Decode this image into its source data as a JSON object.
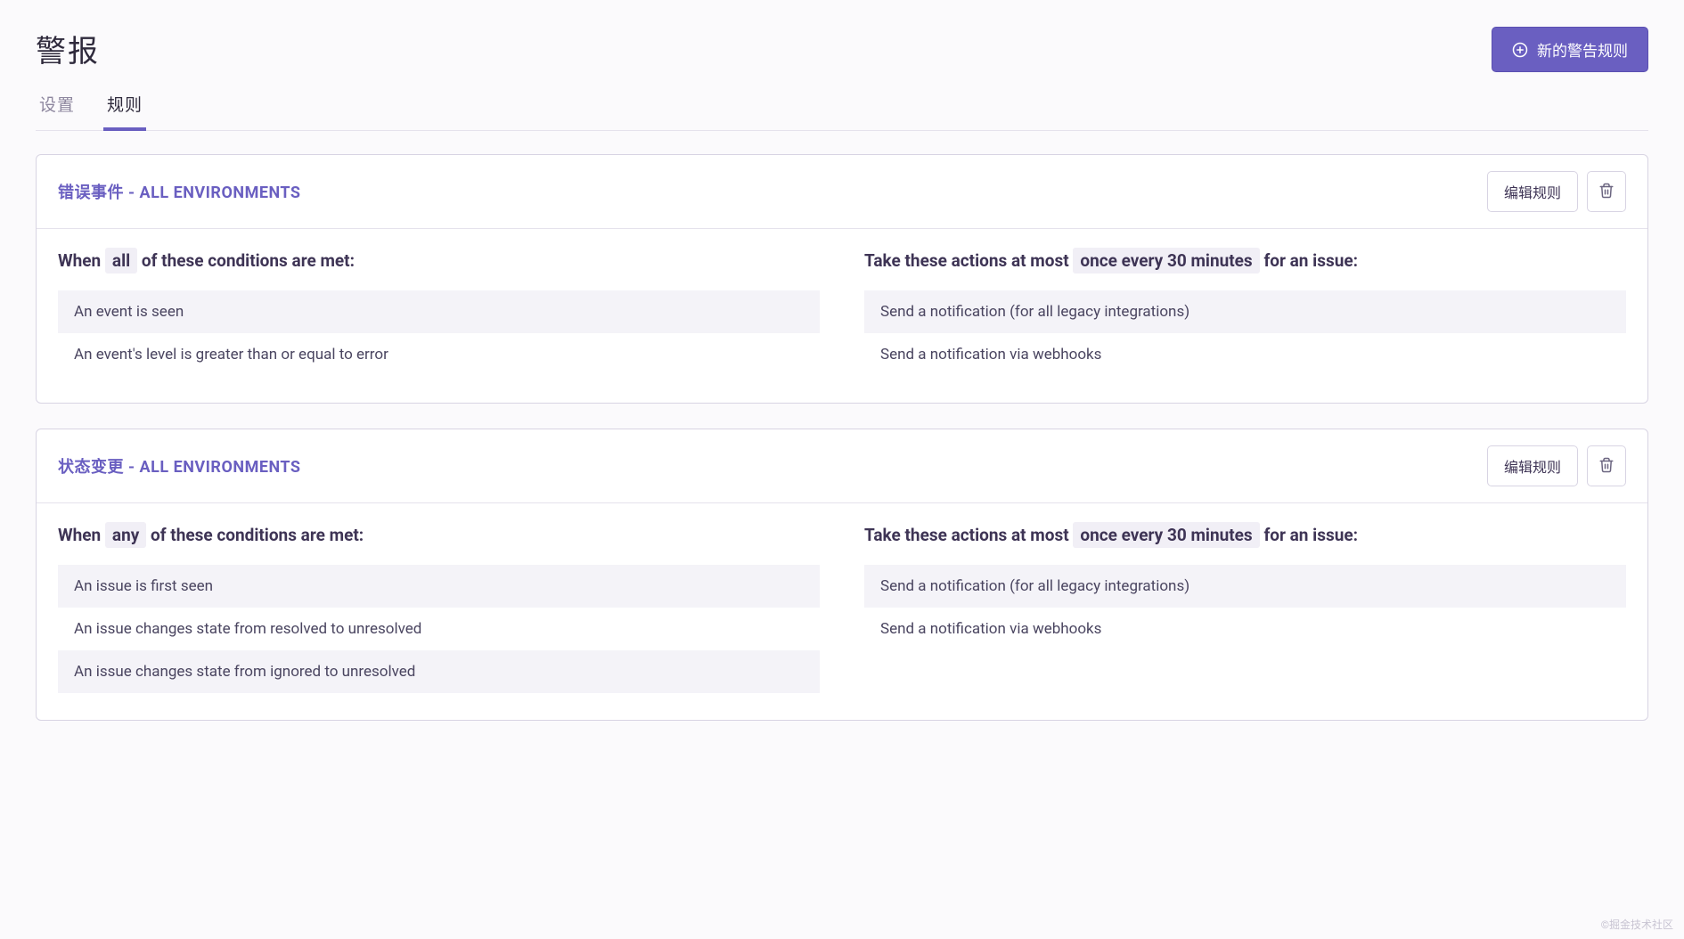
{
  "page": {
    "title": "警报",
    "newRuleButton": "新的警告规则"
  },
  "tabs": [
    {
      "label": "设置",
      "active": false
    },
    {
      "label": "规则",
      "active": true
    }
  ],
  "editLabel": "编辑规则",
  "rules": [
    {
      "title": "错误事件 - ALL ENVIRONMENTS",
      "conditions": {
        "prefix": "When",
        "match": "all",
        "suffix": "of these conditions are met:",
        "items": [
          "An event is seen",
          "An event's level is greater than or equal to error"
        ]
      },
      "actions": {
        "prefix": "Take these actions at most",
        "frequency": "once every 30 minutes",
        "suffix": "for an issue:",
        "items": [
          "Send a notification (for all legacy integrations)",
          "Send a notification via webhooks"
        ]
      }
    },
    {
      "title": "状态变更 - ALL ENVIRONMENTS",
      "conditions": {
        "prefix": "When",
        "match": "any",
        "suffix": "of these conditions are met:",
        "items": [
          "An issue is first seen",
          "An issue changes state from resolved to unresolved",
          "An issue changes state from ignored to unresolved"
        ]
      },
      "actions": {
        "prefix": "Take these actions at most",
        "frequency": "once every 30 minutes",
        "suffix": "for an issue:",
        "items": [
          "Send a notification (for all legacy integrations)",
          "Send a notification via webhooks"
        ]
      }
    }
  ],
  "watermark": "©掘金技术社区",
  "colors": {
    "primary": "#6a5fc1",
    "background": "#fbfafc",
    "border": "#d8d4e3",
    "text": "#3e3455",
    "muted": "#8d869e",
    "stripe": "#f4f3f8",
    "badge": "#f1eff6"
  }
}
